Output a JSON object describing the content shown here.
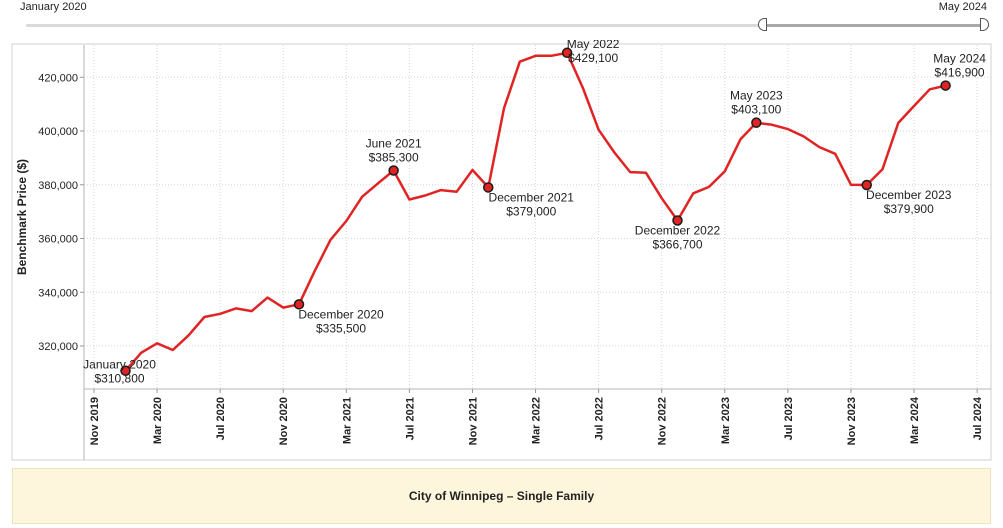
{
  "slider": {
    "start_label": "January 2020",
    "end_label": "May 2024"
  },
  "footer": {
    "title": "City of Winnipeg – Single Family"
  },
  "chart_data": {
    "type": "line",
    "ylabel": "Benchmark Price ($)",
    "xlabel": "",
    "ylim": [
      304000,
      432000
    ],
    "y_ticks": [
      320000,
      340000,
      360000,
      380000,
      400000,
      420000
    ],
    "y_tick_labels": [
      "320,000",
      "340,000",
      "360,000",
      "380,000",
      "400,000",
      "420,000"
    ],
    "x_ticks": [
      "2019-11",
      "2020-03",
      "2020-07",
      "2020-11",
      "2021-03",
      "2021-07",
      "2021-11",
      "2022-03",
      "2022-07",
      "2022-11",
      "2023-03",
      "2023-07",
      "2023-11",
      "2024-03",
      "2024-07"
    ],
    "x_tick_labels": [
      "Nov 2019",
      "Mar 2020",
      "Jul 2020",
      "Nov 2020",
      "Mar 2021",
      "Jul 2021",
      "Nov 2021",
      "Mar 2022",
      "Jul 2022",
      "Nov 2022",
      "Mar 2023",
      "Jul 2023",
      "Nov 2023",
      "Mar 2024",
      "Jul 2024"
    ],
    "grid": true,
    "color": "#e02424",
    "series": [
      {
        "x": [
          "2020-01",
          "2020-02",
          "2020-03",
          "2020-04",
          "2020-05",
          "2020-06",
          "2020-07",
          "2020-08",
          "2020-09",
          "2020-10",
          "2020-11",
          "2020-12",
          "2021-01",
          "2021-02",
          "2021-03",
          "2021-04",
          "2021-05",
          "2021-06",
          "2021-07",
          "2021-08",
          "2021-09",
          "2021-10",
          "2021-11",
          "2021-12",
          "2022-01",
          "2022-02",
          "2022-03",
          "2022-04",
          "2022-05",
          "2022-06",
          "2022-07",
          "2022-08",
          "2022-09",
          "2022-10",
          "2022-11",
          "2022-12",
          "2023-01",
          "2023-02",
          "2023-03",
          "2023-04",
          "2023-05",
          "2023-06",
          "2023-07",
          "2023-08",
          "2023-09",
          "2023-10",
          "2023-11",
          "2023-12",
          "2024-01",
          "2024-02",
          "2024-03",
          "2024-04",
          "2024-05"
        ],
        "values": [
          310800,
          317500,
          321000,
          318500,
          324000,
          330800,
          332000,
          334000,
          333000,
          338000,
          334300,
          335500,
          348000,
          359500,
          366500,
          375500,
          380500,
          385300,
          374500,
          376000,
          378000,
          377400,
          385500,
          379000,
          408500,
          425800,
          428000,
          428000,
          429100,
          416000,
          400500,
          392000,
          384700,
          384500,
          375000,
          366700,
          376800,
          379200,
          385000,
          397000,
          403100,
          402300,
          400700,
          398000,
          394000,
          391500,
          380000,
          379900,
          385800,
          403000,
          409300,
          415500,
          416900
        ]
      }
    ],
    "annotations": [
      {
        "x": "2020-01",
        "month": "January 2020",
        "price": "$310,800"
      },
      {
        "x": "2020-12",
        "month": "December 2020",
        "price": "$335,500"
      },
      {
        "x": "2021-06",
        "month": "June 2021",
        "price": "$385,300"
      },
      {
        "x": "2021-12",
        "month": "December 2021",
        "price": "$379,000"
      },
      {
        "x": "2022-05",
        "month": "May 2022",
        "price": "$429,100"
      },
      {
        "x": "2022-12",
        "month": "December 2022",
        "price": "$366,700"
      },
      {
        "x": "2023-05",
        "month": "May 2023",
        "price": "$403,100"
      },
      {
        "x": "2023-12",
        "month": "December 2023",
        "price": "$379,900"
      },
      {
        "x": "2024-05",
        "month": "May 2024",
        "price": "$416,900"
      }
    ]
  }
}
